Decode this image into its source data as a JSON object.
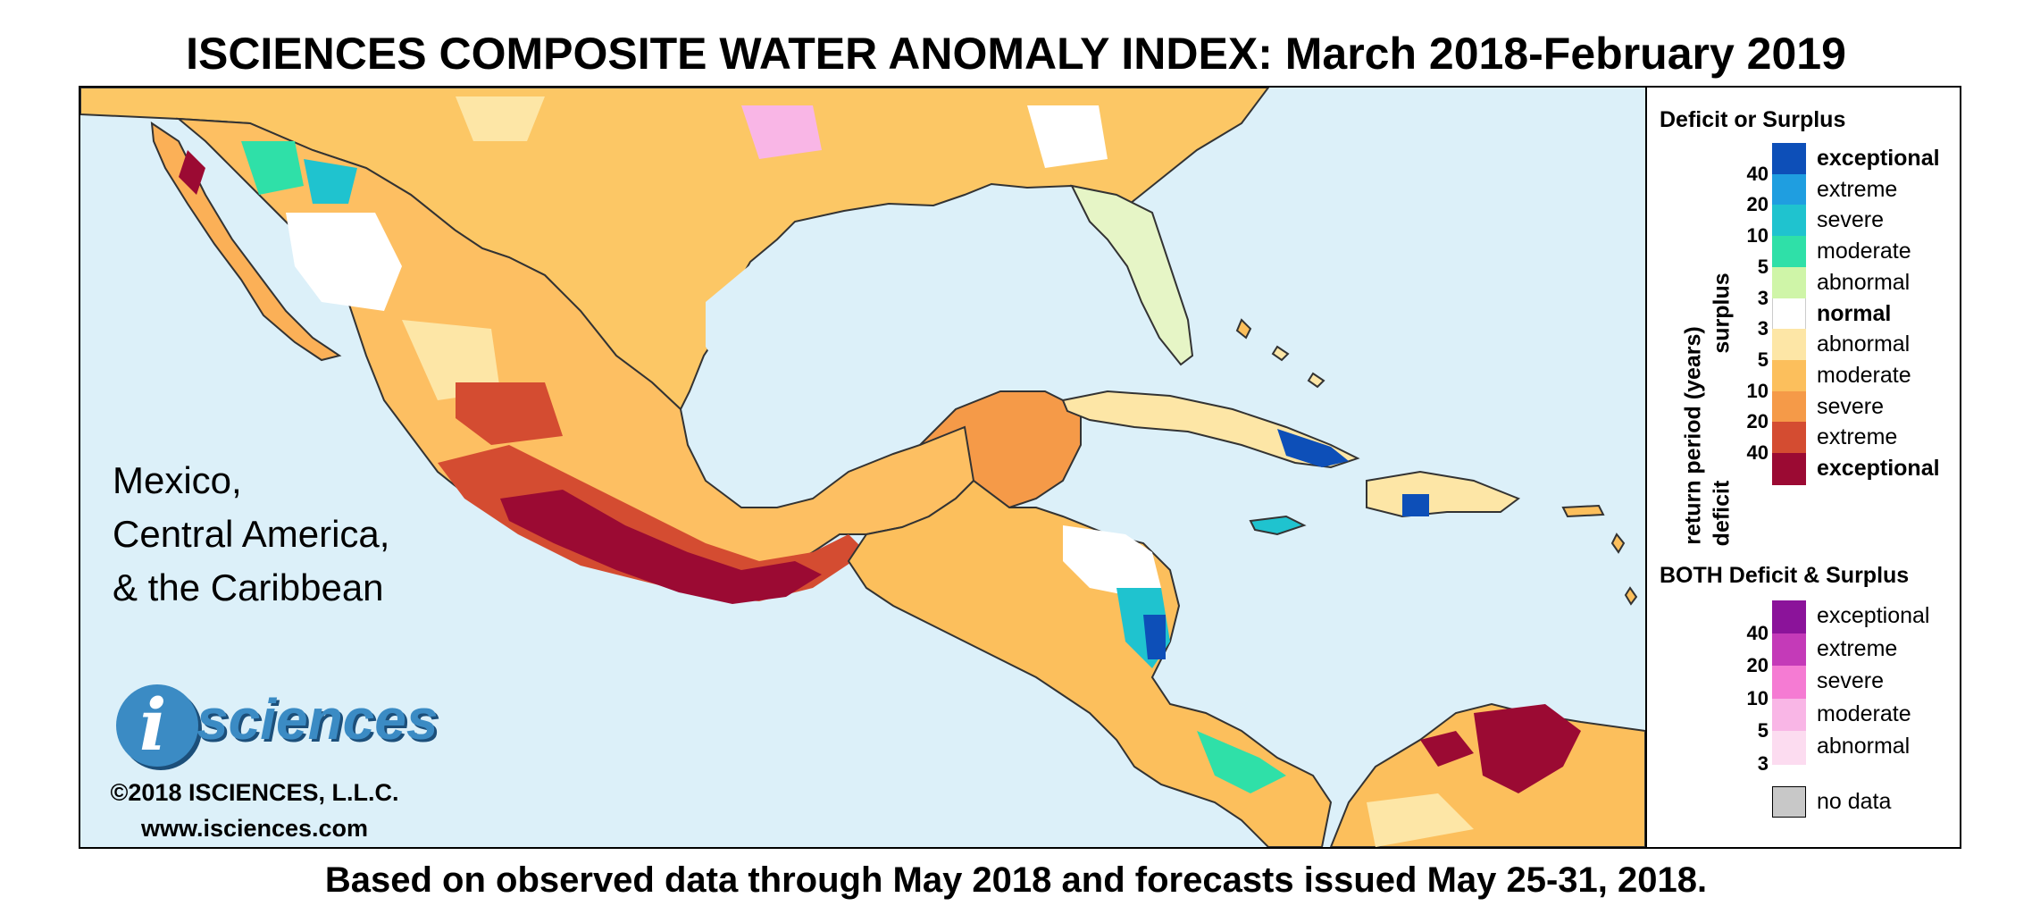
{
  "title": "ISCIENCES COMPOSITE WATER ANOMALY INDEX: March 2018-February 2019",
  "footer": "Based on observed data through May 2018 and forecasts issued May 25-31, 2018.",
  "region_label": [
    "Mexico,",
    "Central America,",
    "& the Caribbean"
  ],
  "logo": {
    "i": "i",
    "word": "sciences",
    "copyright": "©2018 ISCIENCES, L.L.C.",
    "website": "www.isciences.com"
  },
  "legend": {
    "deficit_surplus_title": "Deficit or Surplus",
    "axis_label": "return period (years)",
    "surplus_label": "surplus",
    "deficit_label": "deficit",
    "surplus": [
      {
        "label": "exceptional",
        "color": "#0d4fb8",
        "bold": true
      },
      {
        "label": "extreme",
        "color": "#1f9ee0",
        "bold": false
      },
      {
        "label": "severe",
        "color": "#1fc3cf",
        "bold": false
      },
      {
        "label": "moderate",
        "color": "#2fe0a8",
        "bold": false
      },
      {
        "label": "abnormal",
        "color": "#cff5a8",
        "bold": false
      }
    ],
    "normal": {
      "label": "normal",
      "color": "#ffffff"
    },
    "deficit": [
      {
        "label": "abnormal",
        "color": "#fde6a6",
        "bold": false
      },
      {
        "label": "moderate",
        "color": "#fcbf5c",
        "bold": false
      },
      {
        "label": "severe",
        "color": "#f59a48",
        "bold": false
      },
      {
        "label": "extreme",
        "color": "#d44c31",
        "bold": false
      },
      {
        "label": "exceptional",
        "color": "#9b0a33",
        "bold": true
      }
    ],
    "surplus_periods": [
      "40",
      "20",
      "10",
      "5",
      "3"
    ],
    "deficit_periods": [
      "3",
      "5",
      "10",
      "20",
      "40"
    ],
    "both_title": "BOTH Deficit & Surplus",
    "both": [
      {
        "label": "exceptional",
        "color": "#8b139a"
      },
      {
        "label": "extreme",
        "color": "#c43ab8"
      },
      {
        "label": "severe",
        "color": "#f57bd3"
      },
      {
        "label": "moderate",
        "color": "#f9b6e6"
      },
      {
        "label": "abnormal",
        "color": "#fcdcf0"
      }
    ],
    "both_periods": [
      "40",
      "20",
      "10",
      "5",
      "3"
    ],
    "no_data": {
      "label": "no data",
      "color": "#c8c8c8"
    }
  }
}
